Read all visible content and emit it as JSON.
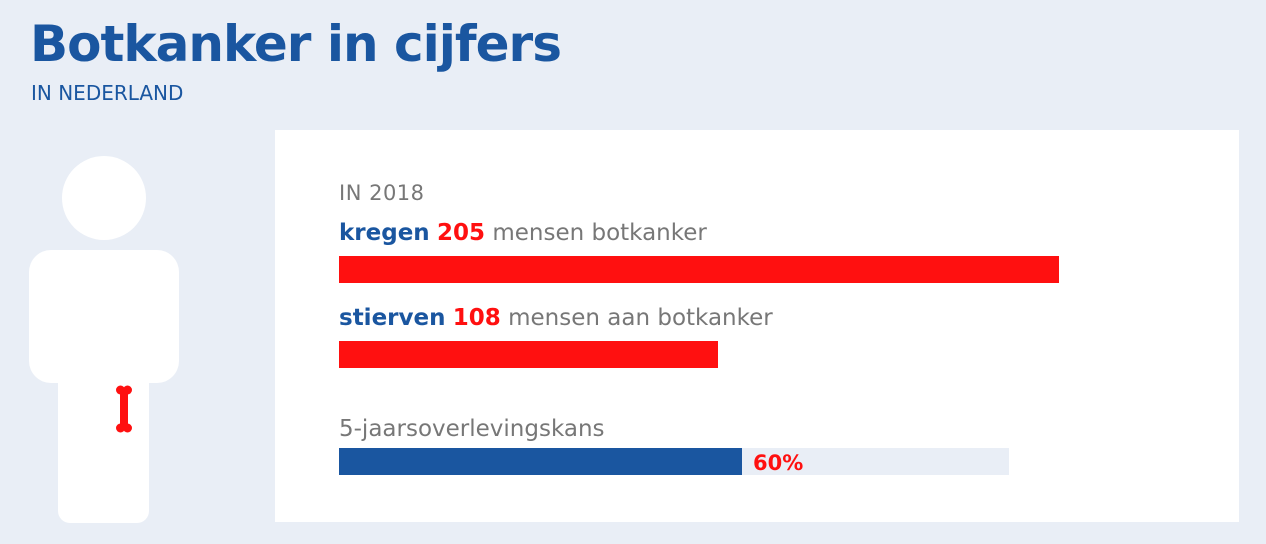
{
  "header": {
    "title": "Botkanker in cijfers",
    "subtitle": "IN NEDERLAND"
  },
  "figure": {
    "icon": "person-silhouette-icon",
    "highlight_icon": "bone-icon",
    "highlight_color": "#ff1010"
  },
  "colors": {
    "brand_blue": "#1a56a0",
    "accent_red": "#ff1010",
    "text_gray": "#777777",
    "background": "#e9eef6"
  },
  "chart_data": [
    {
      "type": "bar",
      "orientation": "horizontal",
      "caption": "IN 2018",
      "axis_max": 245,
      "series": [
        {
          "verb": "kregen",
          "value": 205,
          "rest": " mensen botkanker",
          "color": "#ff1010"
        },
        {
          "verb": "stierven",
          "value": 108,
          "rest": " mensen aan botkanker",
          "color": "#ff1010"
        }
      ]
    },
    {
      "type": "bar",
      "orientation": "horizontal",
      "label": "5-jaarsoverlevingskans",
      "value": 60,
      "value_label": "60%",
      "max": 100,
      "fill_color": "#1a56a0",
      "track_color": "#e9eef6"
    }
  ]
}
